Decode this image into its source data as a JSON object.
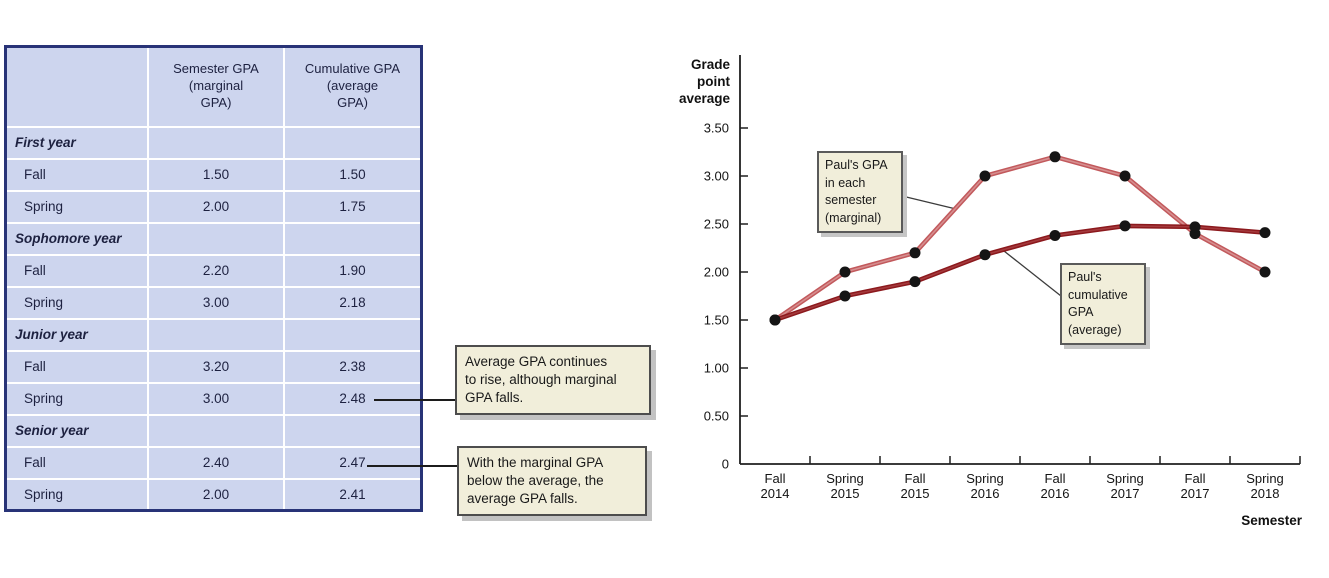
{
  "table": {
    "headers": {
      "corner": "",
      "col1": "Semester GPA\n(marginal\nGPA)",
      "col2": "Cumulative GPA\n(average\nGPA)"
    },
    "rows": [
      {
        "label": "First year",
        "section": true,
        "marginal": "",
        "cumulative": ""
      },
      {
        "label": "Fall",
        "section": false,
        "marginal": "1.50",
        "cumulative": "1.50"
      },
      {
        "label": "Spring",
        "section": false,
        "marginal": "2.00",
        "cumulative": "1.75"
      },
      {
        "label": "Sophomore year",
        "section": true,
        "marginal": "",
        "cumulative": ""
      },
      {
        "label": "Fall",
        "section": false,
        "marginal": "2.20",
        "cumulative": "1.90"
      },
      {
        "label": "Spring",
        "section": false,
        "marginal": "3.00",
        "cumulative": "2.18"
      },
      {
        "label": "Junior year",
        "section": true,
        "marginal": "",
        "cumulative": ""
      },
      {
        "label": "Fall",
        "section": false,
        "marginal": "3.20",
        "cumulative": "2.38"
      },
      {
        "label": "Spring",
        "section": false,
        "marginal": "3.00",
        "cumulative": "2.48"
      },
      {
        "label": "Senior year",
        "section": true,
        "marginal": "",
        "cumulative": ""
      },
      {
        "label": "Fall",
        "section": false,
        "marginal": "2.40",
        "cumulative": "2.47"
      },
      {
        "label": "Spring",
        "section": false,
        "marginal": "2.00",
        "cumulative": "2.41"
      }
    ]
  },
  "callouts": [
    {
      "text": "Average GPA continues\nto rise, although marginal\nGPA falls."
    },
    {
      "text": "With the marginal GPA\nbelow the average, the\naverage GPA falls."
    }
  ],
  "colors": {
    "table_background": "#cdd5ee",
    "table_border": "#283377",
    "callout_background": "#f1eeda",
    "marginal_line": "#c2595c",
    "cumulative_line": "#8c191d",
    "marker": "#151515"
  },
  "chart_data": {
    "type": "line",
    "title": "",
    "ylabel": "Grade\npoint\naverage",
    "xlabel": "Semester",
    "ylim": [
      0,
      3.5
    ],
    "grid": false,
    "legend_position": "annotated-boxes",
    "yticks": [
      {
        "label": "3.50",
        "value": 3.5
      },
      {
        "label": "3.00",
        "value": 3.0
      },
      {
        "label": "2.50",
        "value": 2.5
      },
      {
        "label": "2.00",
        "value": 2.0
      },
      {
        "label": "1.50",
        "value": 1.5
      },
      {
        "label": "1.00",
        "value": 1.0
      },
      {
        "label": "0.50",
        "value": 0.5
      },
      {
        "label": "0",
        "value": 0
      }
    ],
    "categories": [
      {
        "line1": "Fall",
        "line2": "2014"
      },
      {
        "line1": "Spring",
        "line2": "2015"
      },
      {
        "line1": "Fall",
        "line2": "2015"
      },
      {
        "line1": "Spring",
        "line2": "2016"
      },
      {
        "line1": "Fall",
        "line2": "2016"
      },
      {
        "line1": "Spring",
        "line2": "2017"
      },
      {
        "line1": "Fall",
        "line2": "2017"
      },
      {
        "line1": "Spring",
        "line2": "2018"
      }
    ],
    "series": [
      {
        "name": "marginal",
        "label": "Paul's GPA\nin each\nsemester\n(marginal)",
        "values": [
          1.5,
          2.0,
          2.2,
          3.0,
          3.2,
          3.0,
          2.4,
          2.0
        ],
        "color": "#c2595c",
        "highlight": "#d68e8f"
      },
      {
        "name": "cumulative",
        "label": "Paul's\ncumulative\nGPA\n(average)",
        "values": [
          1.5,
          1.75,
          1.9,
          2.18,
          2.38,
          2.48,
          2.47,
          2.41
        ],
        "color": "#8c191d",
        "highlight": "#a43a3d"
      }
    ],
    "marker_color": "#151515"
  }
}
